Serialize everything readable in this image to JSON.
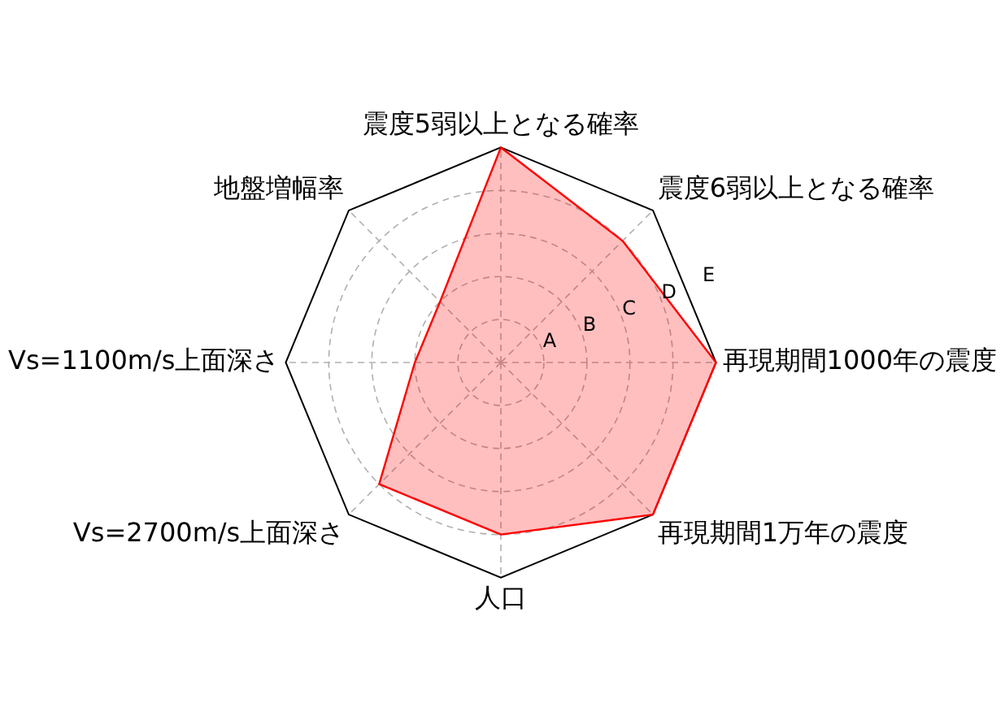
{
  "chart_data": {
    "type": "radar",
    "categories": [
      "震度5弱以上となる確率",
      "震度6弱以上となる確率",
      "再現期間1000年の震度",
      "再現期間1万年の震度",
      "人口",
      "Vs=2700m/s上面深さ",
      "Vs=1100m/s上面深さ",
      "地盤増幅率"
    ],
    "series": [
      {
        "color": "#ff0000",
        "values": [
          5,
          4,
          5,
          5,
          4,
          4,
          2,
          2
        ]
      }
    ],
    "ylim": [
      0,
      5
    ],
    "yticks": [
      {
        "value": 1,
        "label": "A"
      },
      {
        "value": 2,
        "label": "B"
      },
      {
        "value": 3,
        "label": "C"
      },
      {
        "value": 4,
        "label": "D"
      },
      {
        "value": 5,
        "label": "E"
      }
    ],
    "grid": true,
    "marker": "none"
  }
}
